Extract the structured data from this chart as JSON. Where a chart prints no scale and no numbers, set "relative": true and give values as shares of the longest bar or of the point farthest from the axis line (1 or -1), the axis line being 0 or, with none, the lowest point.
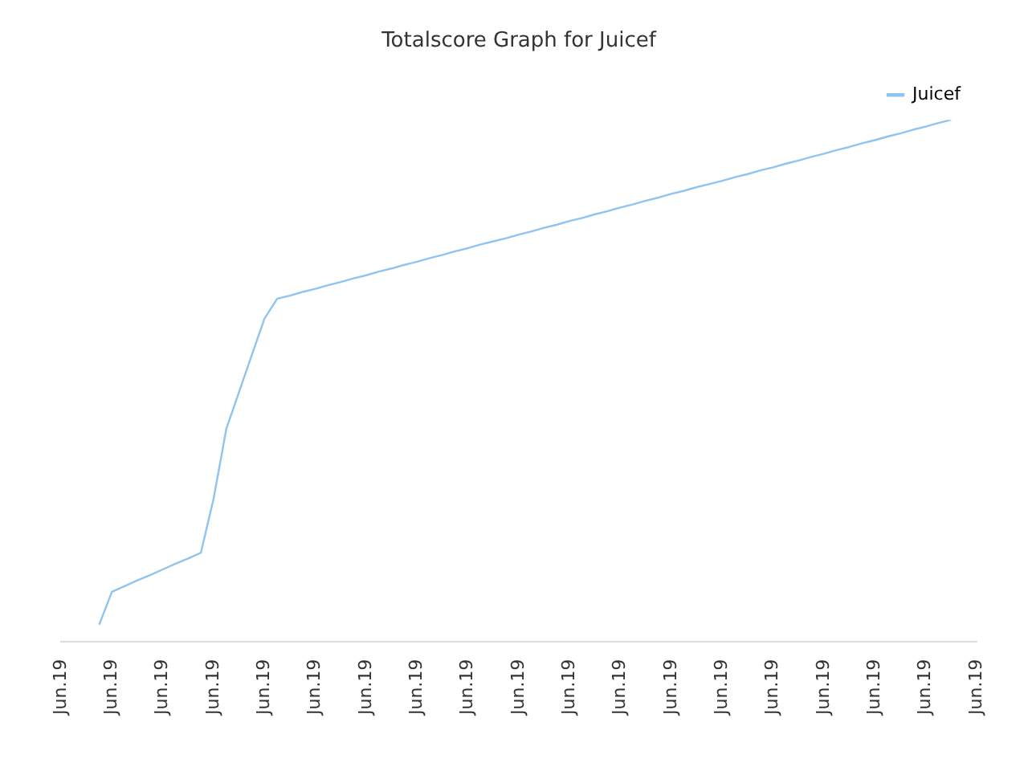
{
  "chart_data": {
    "type": "line",
    "title": "Totalscore Graph for Juicef",
    "relative": true,
    "categories": [
      "Jun.19",
      null,
      null,
      null,
      "Jun.19",
      null,
      null,
      null,
      "Jun.19",
      null,
      null,
      null,
      "Jun.19",
      null,
      null,
      null,
      "Jun.19",
      null,
      null,
      null,
      "Jun.19",
      null,
      null,
      null,
      "Jun.19",
      null,
      null,
      null,
      "Jun.19",
      null,
      null,
      null,
      "Jun.19",
      null,
      null,
      null,
      "Jun.19",
      null,
      null,
      null,
      "Jun.19",
      null,
      null,
      null,
      "Jun.19",
      null,
      null,
      null,
      "Jun.19",
      null,
      null,
      null,
      "Jun.19",
      null,
      null,
      null,
      "Jun.19",
      null,
      null,
      null,
      "Jun.19",
      null,
      null,
      null,
      "Jun.19",
      null,
      null,
      null,
      "Jun.19",
      null,
      null,
      null,
      "Jun.19"
    ],
    "series": [
      {
        "name": "Juicef",
        "color": "#90c4f0",
        "values": [
          null,
          null,
          null,
          0.032,
          0.095,
          0.106,
          0.117,
          0.127,
          0.138,
          0.149,
          0.159,
          0.17,
          0.274,
          0.408,
          0.478,
          0.549,
          0.619,
          0.657,
          0.663,
          0.67,
          0.676,
          0.683,
          0.689,
          0.696,
          0.702,
          0.709,
          0.715,
          0.722,
          0.728,
          0.735,
          0.741,
          0.748,
          0.754,
          0.761,
          0.767,
          0.773,
          0.78,
          0.786,
          0.793,
          0.799,
          0.806,
          0.812,
          0.819,
          0.825,
          0.832,
          0.838,
          0.845,
          0.851,
          0.858,
          0.864,
          0.871,
          0.877,
          0.883,
          0.89,
          0.896,
          0.903,
          0.909,
          0.916,
          0.922,
          0.929,
          0.935,
          0.942,
          0.948,
          0.955,
          0.961,
          0.968,
          0.974,
          0.981,
          0.987,
          0.994,
          1.0,
          null,
          null
        ]
      }
    ],
    "legend": "top right",
    "marker": "none",
    "line_style": "solid"
  }
}
